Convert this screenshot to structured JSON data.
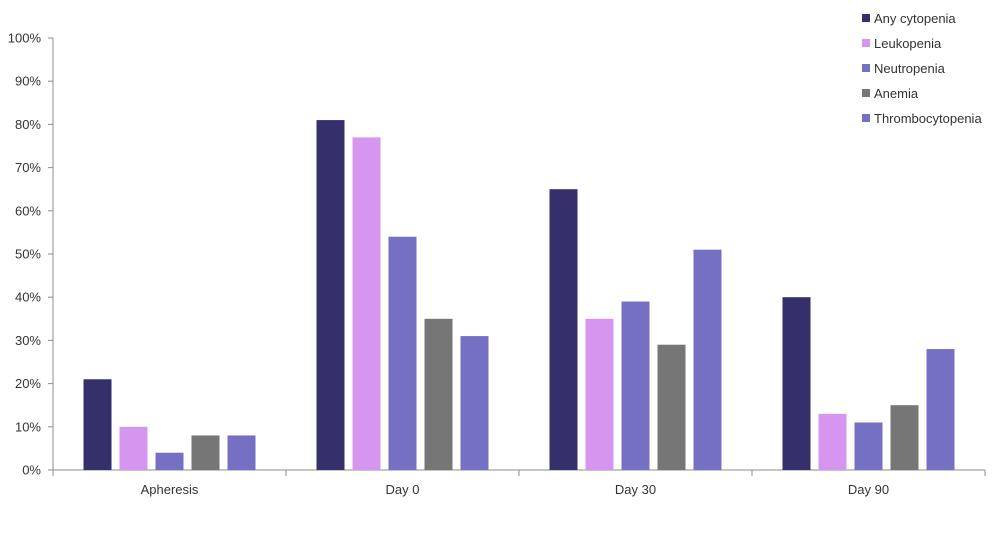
{
  "chart_data": {
    "type": "bar",
    "categories": [
      "Apheresis",
      "Day 0",
      "Day 30",
      "Day 90"
    ],
    "series": [
      {
        "name": "Any cytopenia",
        "color": "#352f6b",
        "values": [
          21,
          81,
          65,
          40
        ]
      },
      {
        "name": "Leukopenia",
        "color": "#d696ef",
        "values": [
          10,
          77,
          35,
          13
        ]
      },
      {
        "name": "Neutropenia",
        "color": "#7570c4",
        "values": [
          4,
          54,
          39,
          11
        ]
      },
      {
        "name": "Anemia",
        "color": "#767676",
        "values": [
          8,
          35,
          29,
          15
        ]
      },
      {
        "name": "Thrombocytopenia",
        "color": "#7570c4",
        "values": [
          8,
          31,
          51,
          28
        ]
      }
    ],
    "ylim": [
      0,
      100
    ],
    "yticks": [
      "0%",
      "10%",
      "20%",
      "30%",
      "40%",
      "50%",
      "60%",
      "70%",
      "80%",
      "90%",
      "100%"
    ],
    "legend_position": "top-right",
    "grid": false
  }
}
